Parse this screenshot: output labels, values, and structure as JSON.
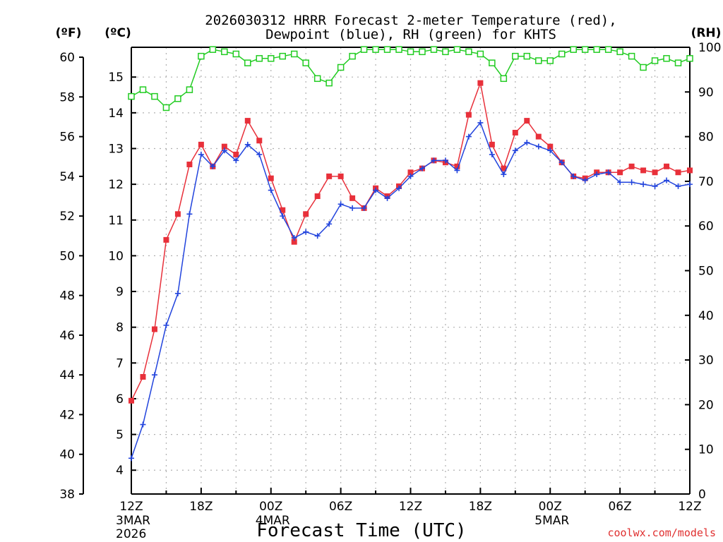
{
  "chart_data": {
    "type": "line",
    "title_line1": "2026030312 HRRR Forecast 2-meter Temperature (red),",
    "title_line2": "Dewpoint (blue), RH (green) for KHTS",
    "xlabel": "Forecast Time (UTC)",
    "credit": "coolwx.com/models",
    "y_left_f_unit": "(ºF)",
    "y_left_c_unit": "(ºC)",
    "y_right_unit": "(RH)",
    "ylim_f": [
      38,
      60.5
    ],
    "ylim_rh": [
      0,
      100
    ],
    "f_ticks": [
      38,
      40,
      42,
      44,
      46,
      48,
      50,
      52,
      54,
      56,
      58,
      60
    ],
    "c_ticks": [
      4,
      5,
      6,
      7,
      8,
      9,
      10,
      11,
      12,
      13,
      14,
      15
    ],
    "rh_ticks": [
      0,
      10,
      20,
      30,
      40,
      50,
      60,
      70,
      80,
      90,
      100
    ],
    "x_hours_range": [
      0,
      48
    ],
    "x_ticks": [
      {
        "hour": 0,
        "label": "12Z",
        "date1": "3MAR",
        "date2": "2026"
      },
      {
        "hour": 6,
        "label": "18Z"
      },
      {
        "hour": 12,
        "label": "00Z",
        "date1": "4MAR"
      },
      {
        "hour": 18,
        "label": "06Z"
      },
      {
        "hour": 24,
        "label": "12Z"
      },
      {
        "hour": 30,
        "label": "18Z"
      },
      {
        "hour": 36,
        "label": "00Z",
        "date1": "5MAR"
      },
      {
        "hour": 42,
        "label": "06Z"
      },
      {
        "hour": 48,
        "label": "12Z"
      }
    ],
    "hours": [
      0,
      1,
      2,
      3,
      4,
      5,
      6,
      7,
      8,
      9,
      10,
      11,
      12,
      13,
      14,
      15,
      16,
      17,
      18,
      19,
      20,
      21,
      22,
      23,
      24,
      25,
      26,
      27,
      28,
      29,
      30,
      31,
      32,
      33,
      34,
      35,
      36,
      37,
      38,
      39,
      40,
      41,
      42,
      43,
      44,
      45,
      46,
      47,
      48
    ],
    "series": [
      {
        "name": "Temperature",
        "unit": "F",
        "color": "#e8303a",
        "values": [
          42.7,
          43.9,
          46.3,
          50.8,
          52.1,
          54.6,
          55.6,
          54.5,
          55.5,
          55.1,
          56.8,
          55.8,
          53.9,
          52.3,
          50.7,
          52.1,
          53.0,
          54.0,
          54.0,
          52.9,
          52.4,
          53.4,
          53.0,
          53.5,
          54.2,
          54.4,
          54.8,
          54.7,
          54.5,
          57.1,
          58.7,
          55.6,
          54.4,
          56.2,
          56.8,
          56.0,
          55.5,
          54.7,
          54.0,
          53.9,
          54.2,
          54.2,
          54.2,
          54.5,
          54.3,
          54.2,
          54.5,
          54.2,
          54.3
        ]
      },
      {
        "name": "Dewpoint",
        "unit": "F",
        "color": "#2244dd",
        "values": [
          39.8,
          41.5,
          44.0,
          46.5,
          48.1,
          52.1,
          55.1,
          54.5,
          55.3,
          54.8,
          55.6,
          55.1,
          53.3,
          52.0,
          50.9,
          51.2,
          51.0,
          51.6,
          52.6,
          52.4,
          52.4,
          53.3,
          52.9,
          53.4,
          54.0,
          54.4,
          54.8,
          54.8,
          54.3,
          56.0,
          56.7,
          55.1,
          54.1,
          55.3,
          55.7,
          55.5,
          55.3,
          54.7,
          54.0,
          53.8,
          54.1,
          54.2,
          53.7,
          53.7,
          53.6,
          53.5,
          53.8,
          53.5,
          53.6
        ]
      },
      {
        "name": "Relative Humidity",
        "unit": "%",
        "color": "#22cc22",
        "values": [
          89,
          90.5,
          89,
          86.5,
          88.5,
          90.5,
          98,
          99.5,
          99,
          98.5,
          96.5,
          97.5,
          97.5,
          98,
          98.5,
          96.5,
          93,
          92,
          95.5,
          98,
          99.5,
          99.5,
          99.5,
          99.5,
          99,
          99,
          99.5,
          99,
          99.5,
          99,
          98.5,
          96.5,
          93,
          98,
          98,
          97,
          97,
          98.5,
          99.5,
          99.5,
          99.5,
          99.5,
          99,
          98,
          95.5,
          97,
          97.5,
          96.5,
          97.5
        ]
      }
    ]
  }
}
